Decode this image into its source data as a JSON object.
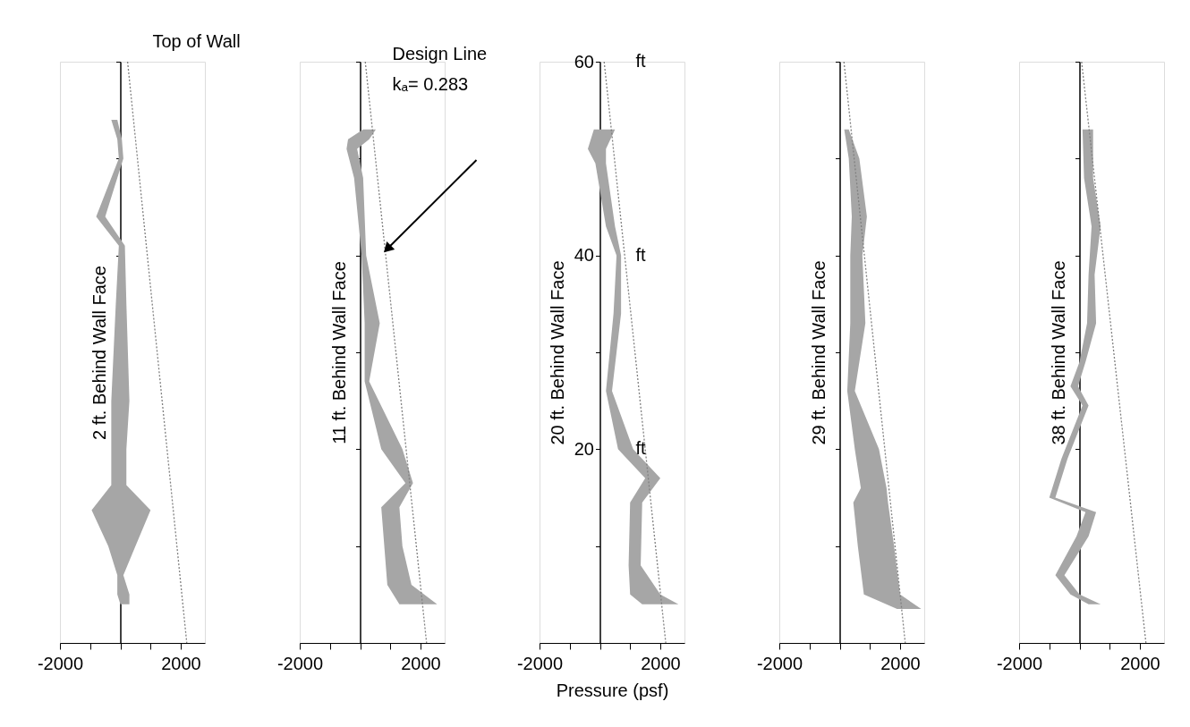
{
  "chart_data": [
    {
      "type": "area",
      "orientation": "horizontal",
      "ylabel": "2 ft. Behind Wall Face",
      "xlim": [
        -2000,
        2800
      ],
      "xticks": [
        -2000,
        {
          "value": -1000,
          "label": null
        },
        {
          "value": 0,
          "label": null
        },
        {
          "value": 1000,
          "label": null
        },
        2000
      ],
      "ylim": [
        0,
        60
      ],
      "yticks": [
        {
          "value": 10,
          "label": null
        },
        {
          "value": 20,
          "label": null
        },
        {
          "value": 30,
          "label": null
        },
        {
          "value": 40,
          "label": null
        },
        {
          "value": 50,
          "label": null
        },
        {
          "value": 60,
          "label": null
        }
      ],
      "tick_labels": "x",
      "series": [
        {
          "type": "area",
          "color": "#a6a6a6",
          "x": [
            54,
            52,
            50,
            44,
            41,
            35,
            25,
            20,
            16.3,
            13.7,
            10,
            7,
            5,
            4
          ],
          "values": [
            null,
            null,
            null,
            null,
            null,
            null,
            null,
            null,
            null,
            null,
            null,
            null,
            null,
            null
          ],
          "lower": [
            -300,
            -100,
            -50,
            -800,
            -50,
            -150,
            -300,
            -300,
            -300,
            -950,
            -400,
            -100,
            -100,
            0
          ],
          "upper": [
            -100,
            50,
            100,
            -500,
            150,
            200,
            300,
            200,
            200,
            1000,
            500,
            100,
            300,
            300
          ]
        },
        {
          "type": "line",
          "color": "#808080",
          "line_style": "dotted",
          "x": [
            60,
            0
          ],
          "values": [
            240,
            2200
          ]
        }
      ],
      "annotations": [
        "Top of Wall"
      ]
    },
    {
      "type": "area",
      "orientation": "horizontal",
      "ylabel": "11 ft. Behind Wall Face",
      "xlim": [
        -2000,
        2800
      ],
      "xticks": [
        -2000,
        {
          "value": -1000,
          "label": null
        },
        {
          "value": 0,
          "label": null
        },
        {
          "value": 1000,
          "label": null
        },
        2000
      ],
      "ylim": [
        0,
        60
      ],
      "yticks": [
        {
          "value": 10,
          "label": null
        },
        {
          "value": 20,
          "label": null
        },
        {
          "value": 30,
          "label": null
        },
        {
          "value": 40,
          "label": null
        },
        {
          "value": 50,
          "label": null
        },
        {
          "value": 60,
          "label": null
        }
      ],
      "tick_labels": "x",
      "series": [
        {
          "type": "area",
          "color": "#a6a6a6",
          "x": [
            53,
            52,
            51,
            48,
            40,
            33,
            27,
            20,
            16.5,
            14,
            10,
            6,
            4
          ],
          "values": [
            null,
            null,
            null,
            null,
            null,
            null,
            null,
            null,
            null,
            null,
            null,
            null,
            null
          ],
          "lower": [
            100,
            -400,
            -450,
            -200,
            50,
            150,
            150,
            700,
            1500,
            700,
            800,
            900,
            1300
          ],
          "upper": [
            520,
            300,
            -100,
            100,
            200,
            650,
            300,
            1400,
            1750,
            1300,
            1400,
            1700,
            2550
          ]
        },
        {
          "type": "line",
          "color": "#808080",
          "line_style": "dotted",
          "x": [
            60,
            0
          ],
          "values": [
            170,
            2200
          ]
        }
      ],
      "annotations": [
        "Design Line",
        "kₐ= 0.283"
      ]
    },
    {
      "type": "area",
      "orientation": "horizontal",
      "ylabel": "20 ft. Behind Wall Face",
      "xlabel": "Pressure    (psf)",
      "xlim": [
        -2000,
        2800
      ],
      "xticks": [
        -2000,
        {
          "value": -1000,
          "label": null
        },
        {
          "value": 0,
          "label": null
        },
        {
          "value": 1000,
          "label": null
        },
        2000
      ],
      "ylim": [
        0,
        60
      ],
      "yticks": [
        {
          "value": 10,
          "label": null
        },
        20,
        {
          "value": 30,
          "label": null
        },
        40,
        {
          "value": 50,
          "label": null
        },
        60
      ],
      "series": [
        {
          "type": "area",
          "color": "#a6a6a6",
          "x": [
            53,
            51,
            49.5,
            43,
            40,
            34,
            26,
            20,
            17,
            14.5,
            8,
            5,
            4
          ],
          "values": [
            null,
            null,
            null,
            null,
            null,
            null,
            null,
            null,
            null,
            null,
            null,
            null,
            null
          ],
          "lower": [
            -200,
            -400,
            -150,
            200,
            550,
            450,
            200,
            600,
            1500,
            1000,
            950,
            1000,
            1400
          ],
          "upper": [
            500,
            200,
            200,
            500,
            700,
            700,
            400,
            1100,
            2000,
            1400,
            1350,
            2000,
            2600
          ]
        },
        {
          "type": "line",
          "color": "#808080",
          "line_style": "dotted",
          "x": [
            60,
            0
          ],
          "values": [
            140,
            2180
          ]
        }
      ],
      "annotations": [
        "ft",
        "ft",
        "ft"
      ]
    },
    {
      "type": "area",
      "orientation": "horizontal",
      "ylabel": "29 ft. Behind Wall Face",
      "xlim": [
        -2000,
        2800
      ],
      "xticks": [
        -2000,
        {
          "value": -1000,
          "label": null
        },
        {
          "value": 0,
          "label": null
        },
        {
          "value": 1000,
          "label": null
        },
        2000
      ],
      "ylim": [
        0,
        60
      ],
      "yticks": [
        {
          "value": 10,
          "label": null
        },
        {
          "value": 20,
          "label": null
        },
        {
          "value": 30,
          "label": null
        },
        {
          "value": 40,
          "label": null
        },
        {
          "value": 50,
          "label": null
        },
        {
          "value": 60,
          "label": null
        }
      ],
      "tick_labels": "x",
      "series": [
        {
          "type": "area",
          "color": "#a6a6a6",
          "x": [
            53,
            50,
            44,
            40,
            33,
            26,
            20,
            16,
            14.5,
            10,
            5,
            3.5
          ],
          "values": [
            null,
            null,
            null,
            null,
            null,
            null,
            null,
            null,
            null,
            null,
            null,
            null
          ],
          "lower": [
            150,
            300,
            400,
            350,
            350,
            250,
            500,
            700,
            450,
            600,
            800,
            1900
          ],
          "upper": [
            300,
            650,
            900,
            750,
            850,
            500,
            1300,
            1550,
            1600,
            1800,
            2000,
            2700
          ]
        },
        {
          "type": "line",
          "color": "#808080",
          "line_style": "dotted",
          "x": [
            60,
            0
          ],
          "values": [
            140,
            2170
          ]
        }
      ]
    },
    {
      "type": "area",
      "orientation": "horizontal",
      "ylabel": "38 ft. Behind Wall Face",
      "xlim": [
        -2000,
        2800
      ],
      "xticks": [
        -2000,
        {
          "value": -1000,
          "label": null
        },
        {
          "value": 0,
          "label": null
        },
        {
          "value": 1000,
          "label": null
        },
        2000
      ],
      "ylim": [
        0,
        60
      ],
      "yticks": [
        {
          "value": 10,
          "label": null
        },
        {
          "value": 20,
          "label": null
        },
        {
          "value": 30,
          "label": null
        },
        {
          "value": 40,
          "label": null
        },
        {
          "value": 50,
          "label": null
        },
        {
          "value": 60,
          "label": null
        }
      ],
      "tick_labels": "x",
      "series": [
        {
          "type": "area",
          "color": "#a6a6a6",
          "x": [
            53,
            48,
            43,
            38,
            33,
            29,
            26.5,
            24.5,
            19,
            15,
            13.5,
            11,
            7,
            5,
            4
          ],
          "values": [
            null,
            null,
            null,
            null,
            null,
            null,
            null,
            null,
            null,
            null,
            null,
            null,
            null,
            null,
            null
          ],
          "lower": [
            100,
            150,
            400,
            300,
            250,
            0,
            -300,
            100,
            -600,
            -1000,
            200,
            -100,
            -800,
            -300,
            300
          ],
          "upper": [
            450,
            450,
            700,
            500,
            550,
            200,
            -50,
            300,
            -400,
            -800,
            550,
            300,
            -500,
            0,
            700
          ]
        },
        {
          "type": "line",
          "color": "#808080",
          "line_style": "dotted",
          "x": [
            60,
            0
          ],
          "values": [
            70,
            2200
          ]
        }
      ]
    }
  ]
}
